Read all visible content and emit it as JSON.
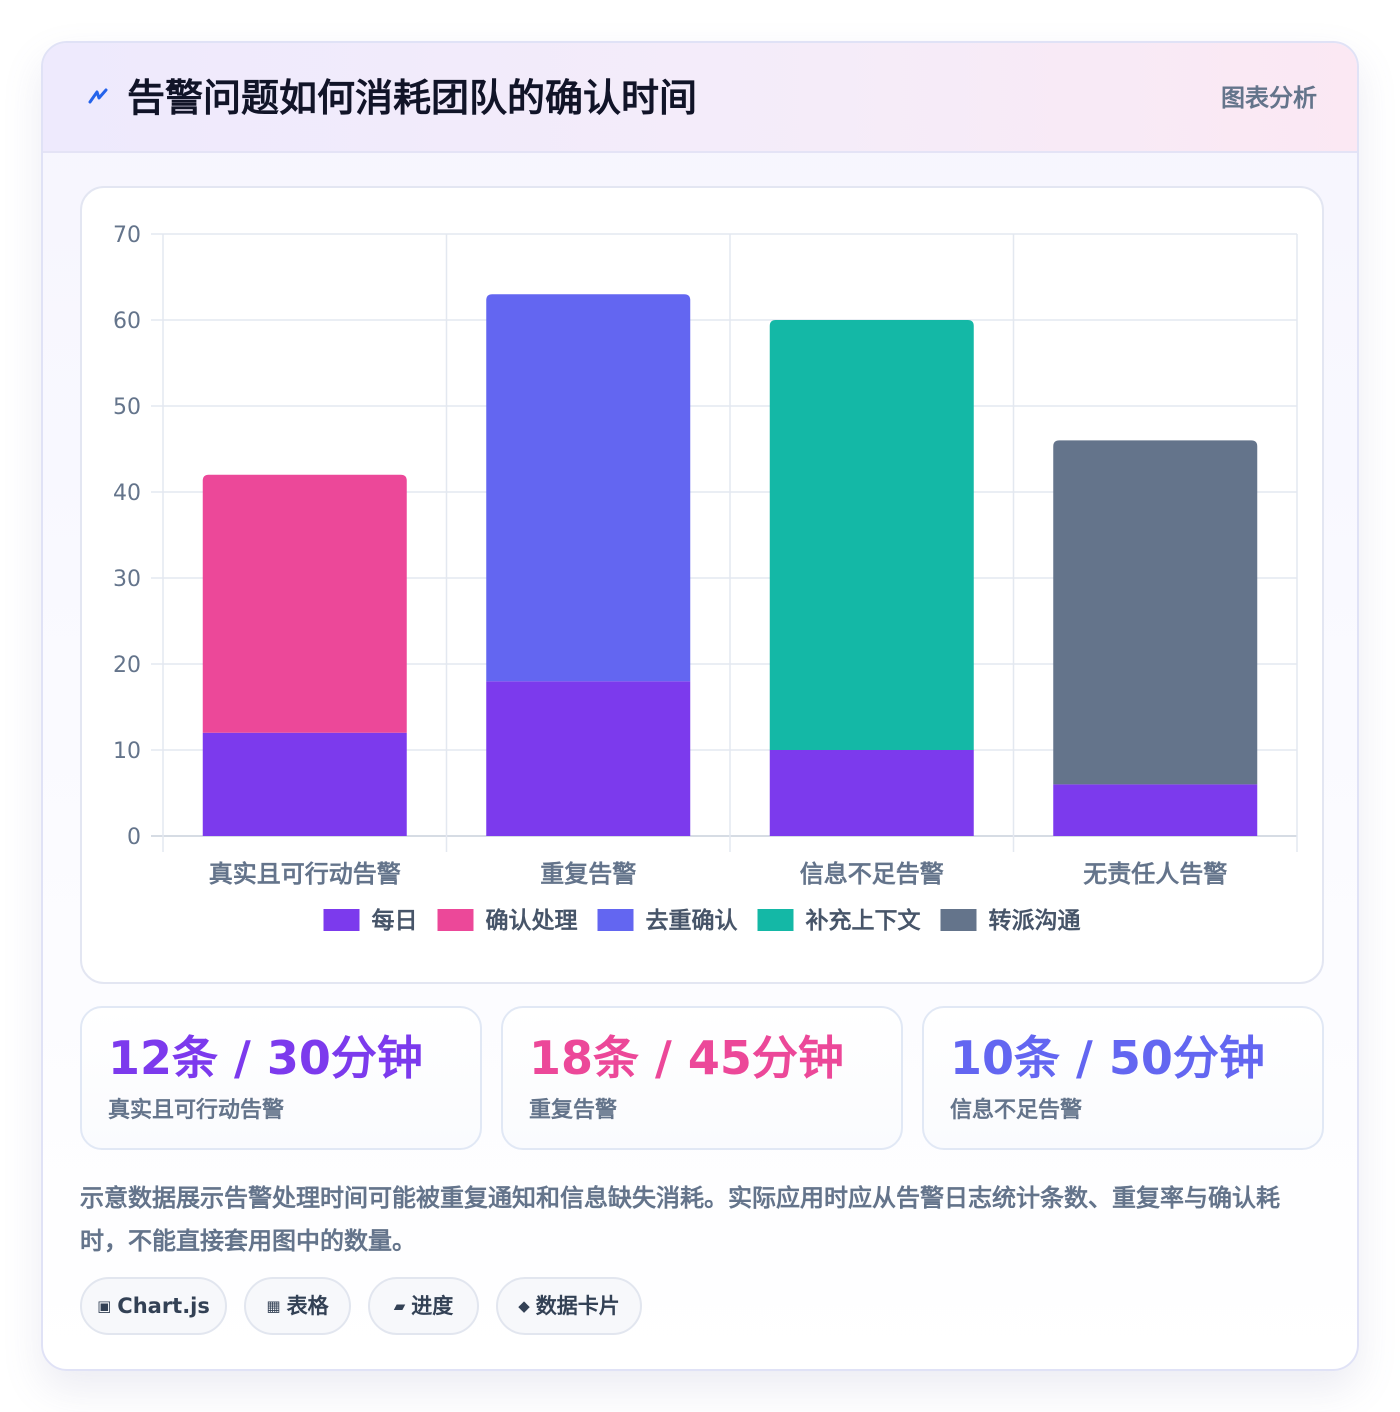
{
  "header": {
    "title": "告警问题如何消耗团队的确认时间",
    "tag": "图表分析",
    "icon": "lightning-icon"
  },
  "chart_data": {
    "type": "bar",
    "stacked": true,
    "categories": [
      "真实且可行动告警",
      "重复告警",
      "信息不足告警",
      "无责任人告警"
    ],
    "series": [
      {
        "name": "每日",
        "color": "#7c3aed",
        "values": [
          12,
          18,
          10,
          6
        ]
      },
      {
        "name": "确认处理",
        "color": "#ec4899",
        "values": [
          30,
          0,
          0,
          0
        ]
      },
      {
        "name": "去重确认",
        "color": "#6366f1",
        "values": [
          0,
          45,
          0,
          0
        ]
      },
      {
        "name": "补充上下文",
        "color": "#14b8a6",
        "values": [
          0,
          0,
          50,
          0
        ]
      },
      {
        "name": "转派沟通",
        "color": "#64748b",
        "values": [
          0,
          0,
          0,
          40
        ]
      }
    ],
    "ylim": [
      0,
      70
    ],
    "yticks": [
      0,
      10,
      20,
      30,
      40,
      50,
      60,
      70
    ],
    "grid": true,
    "legend_position": "bottom"
  },
  "stats": [
    {
      "value": "12条 / 30分钟",
      "label": "真实且可行动告警",
      "color": "#7c3aed"
    },
    {
      "value": "18条 / 45分钟",
      "label": "重复告警",
      "color": "#ec4899"
    },
    {
      "value": "10条 / 50分钟",
      "label": "信息不足告警",
      "color": "#6366f1"
    }
  ],
  "note": "示意数据展示告警处理时间可能被重复通知和信息缺失消耗。实际应用时应从告警日志统计条数、重复率与确认耗时，不能直接套用图中的数量。",
  "chips": [
    {
      "icon": "▣",
      "label": "Chart.js"
    },
    {
      "icon": "▦",
      "label": "表格"
    },
    {
      "icon": "▰",
      "label": "进度"
    },
    {
      "icon": "◆",
      "label": "数据卡片"
    }
  ]
}
